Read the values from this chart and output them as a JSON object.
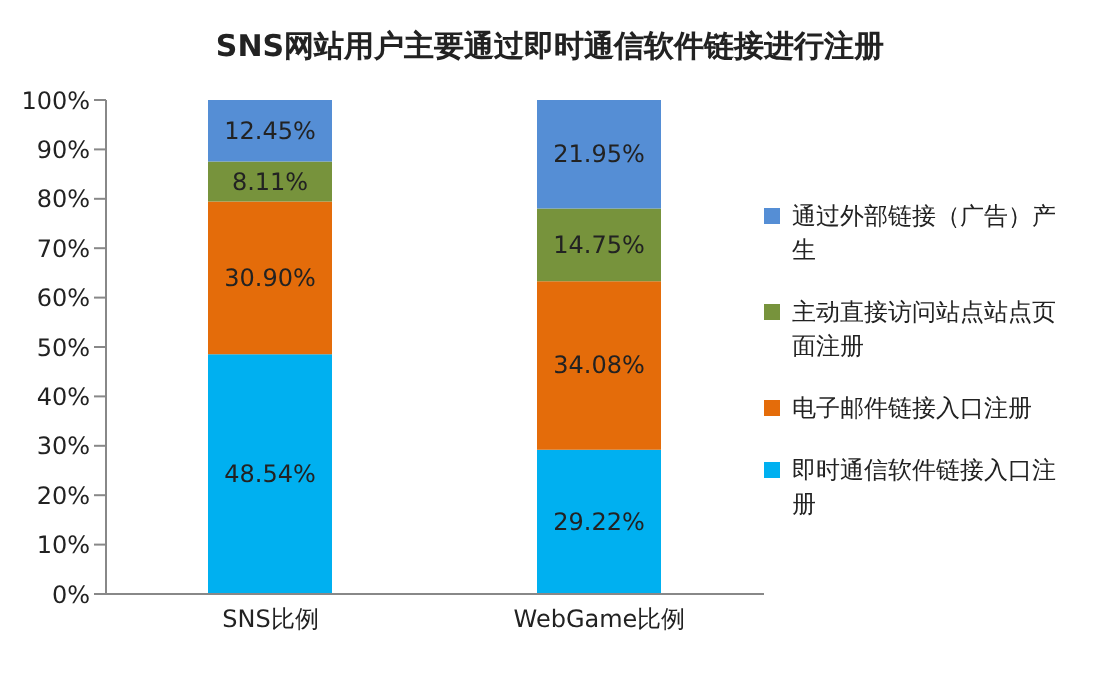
{
  "chart_data": {
    "type": "bar",
    "title": "SNS网站用户主要通过即时通信软件链接进行注册",
    "categories": [
      "SNS比例",
      "WebGame比例"
    ],
    "stacked": true,
    "series": [
      {
        "name": "即时通信软件链接入口注册",
        "color": "#00b0f0",
        "values": [
          48.54,
          29.22
        ],
        "value_labels": [
          "48.54%",
          "29.22%"
        ]
      },
      {
        "name": "电子邮件链接入口注册",
        "color": "#e46c0a",
        "values": [
          30.9,
          34.08
        ],
        "value_labels": [
          "30.90%",
          "34.08%"
        ]
      },
      {
        "name": "主动直接访问站点站点页面注册",
        "color": "#77933c",
        "values": [
          8.11,
          14.75
        ],
        "value_labels": [
          "8.11%",
          "14.75%"
        ]
      },
      {
        "name": "通过外部链接（广告）产生",
        "color": "#558ed5",
        "values": [
          12.45,
          21.95
        ],
        "value_labels": [
          "12.45%",
          "21.95%"
        ]
      }
    ],
    "ylim": [
      0,
      100
    ],
    "yticks": [
      {
        "value": 0,
        "label": "0%"
      },
      {
        "value": 10,
        "label": "10%"
      },
      {
        "value": 20,
        "label": "20%"
      },
      {
        "value": 30,
        "label": "30%"
      },
      {
        "value": 40,
        "label": "40%"
      },
      {
        "value": 50,
        "label": "50%"
      },
      {
        "value": 60,
        "label": "60%"
      },
      {
        "value": 70,
        "label": "70%"
      },
      {
        "value": 80,
        "label": "80%"
      },
      {
        "value": 90,
        "label": "90%"
      },
      {
        "value": 100,
        "label": "100%"
      }
    ],
    "grid": false,
    "legend": "right"
  }
}
